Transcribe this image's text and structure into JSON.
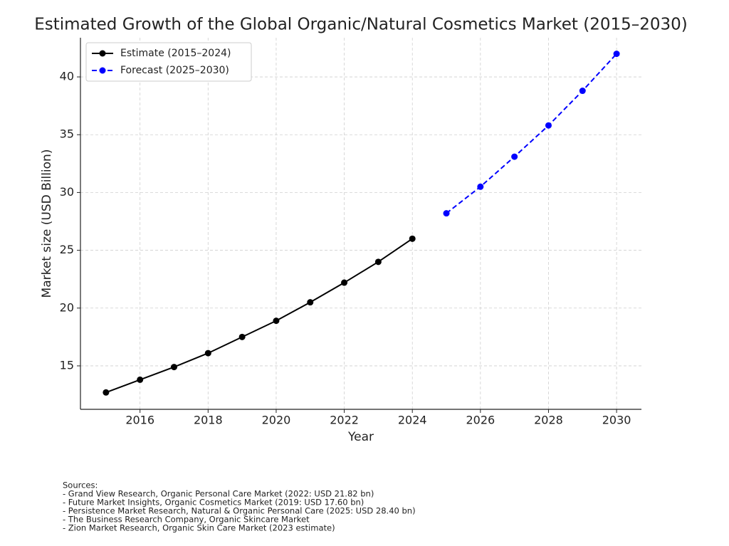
{
  "chart_data": {
    "type": "line",
    "title": "Estimated Growth of the Global Organic/Natural Cosmetics Market (2015–2030)",
    "x_label": "Year",
    "y_label": "Market size (USD Billion)",
    "series": [
      {
        "name": "Estimate (2015–2024)",
        "color": "#000000",
        "linestyle": "solid",
        "x": [
          2015,
          2016,
          2017,
          2018,
          2019,
          2020,
          2021,
          2022,
          2023,
          2024
        ],
        "values": [
          12.7,
          13.8,
          14.9,
          16.1,
          17.5,
          18.9,
          20.5,
          22.2,
          24.0,
          26.0
        ]
      },
      {
        "name": "Forecast (2025–2030)",
        "color": "#0000ff",
        "linestyle": "dashed",
        "x": [
          2025,
          2026,
          2027,
          2028,
          2029,
          2030
        ],
        "values": [
          28.2,
          30.5,
          33.1,
          35.8,
          38.8,
          42.0
        ]
      }
    ],
    "xlim": [
      2014.25,
      2030.73
    ],
    "xticks": [
      2016,
      2018,
      2020,
      2022,
      2024,
      2026,
      2028,
      2030
    ],
    "ylim": [
      11.24,
      43.39
    ],
    "yticks": [
      15,
      20,
      25,
      30,
      35,
      40
    ],
    "grid": true,
    "legend": "upper-left"
  },
  "sources": {
    "title": "Sources:",
    "items": [
      "- Grand View Research, Organic Personal Care Market (2022: USD 21.82 bn)",
      "- Future Market Insights, Organic Cosmetics Market (2019: USD 17.60 bn)",
      "- Persistence Market Research, Natural & Organic Personal Care (2025: USD 28.40 bn)",
      "- The Business Research Company, Organic Skincare Market",
      "- Zion Market Research, Organic Skin Care Market (2023 estimate)"
    ]
  }
}
